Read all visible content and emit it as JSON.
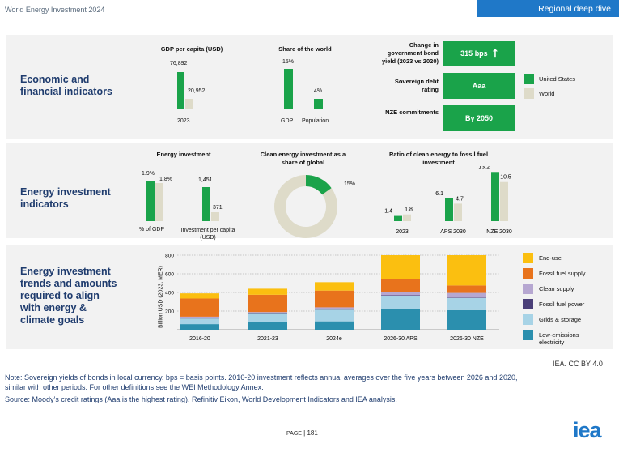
{
  "header": {
    "title": "World Energy Investment 2024",
    "section_button": "Regional deep dive"
  },
  "colors": {
    "us_green": "#1aa34a",
    "world_beige": "#dedbc9",
    "accent_blue": "#1f78c8",
    "title_navy": "#1f3c6e"
  },
  "panel1": {
    "title": "Economic and\nfinancial indicators",
    "gdp_chart": {
      "caption": "GDP per capita (USD)",
      "us_label": "76,892",
      "world_label": "20,952",
      "year_label": "2023"
    },
    "share_chart": {
      "caption": "Share of the world",
      "gdp_label": "15%",
      "pop_label": "4%",
      "cat_gdp": "GDP",
      "cat_pop": "Population"
    },
    "bond": {
      "label": "Change in\ngovernment bond\nyield (2023 vs 2020)",
      "value": "315 bps",
      "icon": "arrow-up-icon"
    },
    "rating": {
      "label": "Sovereign debt\nrating",
      "value": "Aaa"
    },
    "nze": {
      "label": "NZE commitments",
      "value": "By 2050"
    },
    "legend": {
      "us": "United States",
      "world": "World"
    }
  },
  "panel2": {
    "title": "Energy investment\nindicators",
    "invest_chart": {
      "caption": "Energy investment",
      "pct_us": "1.9%",
      "pct_world": "1.8%",
      "pc_us": "1,451",
      "pc_world": "371",
      "cat_pct": "% of GDP",
      "cat_pc": "Investment per capita\n(USD)"
    },
    "donut": {
      "caption": "Clean energy investment as a\nshare of global",
      "value_label": "15%"
    },
    "ratio_chart": {
      "caption": "Ratio of clean energy to fossil fuel\ninvestment",
      "labels": [
        [
          "1.4",
          "1.8"
        ],
        [
          "6.1",
          "4.7"
        ],
        [
          "13.2",
          "10.5"
        ]
      ],
      "categories": [
        "2023",
        "APS 2030",
        "NZE 2030"
      ]
    }
  },
  "panel3": {
    "title": "Energy investment\ntrends and amounts\nrequired to align\nwith energy &\nclimate goals",
    "legend": [
      "End-use",
      "Fossil fuel supply",
      "Clean supply",
      "Fossil fuel power",
      "Grids & storage",
      "Low-emissions\nelectricity"
    ]
  },
  "chart_data": [
    {
      "type": "bar",
      "title": "GDP per capita (USD)",
      "categories": [
        "2023"
      ],
      "series": [
        {
          "name": "United States",
          "values": [
            76892
          ]
        },
        {
          "name": "World",
          "values": [
            20952
          ]
        }
      ]
    },
    {
      "type": "bar",
      "title": "Share of the world",
      "categories": [
        "GDP",
        "Population"
      ],
      "series": [
        {
          "name": "United States",
          "values": [
            15,
            4
          ]
        }
      ]
    },
    {
      "type": "bar",
      "title": "Energy investment",
      "categories": [
        "% of GDP",
        "Investment per capita (USD)"
      ],
      "series": [
        {
          "name": "United States",
          "values": [
            1.9,
            1451
          ]
        },
        {
          "name": "World",
          "values": [
            1.8,
            371
          ]
        }
      ]
    },
    {
      "type": "pie",
      "title": "Clean energy investment as a share of global",
      "values": [
        15,
        85
      ],
      "labels": [
        "15%",
        ""
      ]
    },
    {
      "type": "bar",
      "title": "Ratio of clean energy to fossil fuel investment",
      "categories": [
        "2023",
        "APS 2030",
        "NZE 2030"
      ],
      "series": [
        {
          "name": "United States",
          "values": [
            1.4,
            6.1,
            13.2
          ]
        },
        {
          "name": "World",
          "values": [
            1.8,
            4.7,
            10.5
          ]
        }
      ]
    },
    {
      "type": "bar",
      "stacked": true,
      "ylabel": "Billion USD (2023, MER)",
      "ylim": [
        0,
        800
      ],
      "yticks": [
        200,
        400,
        600,
        800
      ],
      "categories": [
        "2016-20",
        "2021-23",
        "2024e",
        "2026-30 APS",
        "2026-30 NZE"
      ],
      "series": [
        {
          "name": "Low-emissions electricity",
          "color": "#2b8fae",
          "values": [
            60,
            80,
            90,
            225,
            210
          ]
        },
        {
          "name": "Grids & storage",
          "color": "#a7d3e6",
          "values": [
            60,
            90,
            125,
            140,
            130
          ]
        },
        {
          "name": "Fossil fuel power",
          "color": "#4a3f78",
          "values": [
            10,
            10,
            10,
            5,
            5
          ]
        },
        {
          "name": "Clean supply",
          "color": "#b6a7d1",
          "values": [
            10,
            10,
            15,
            30,
            50
          ]
        },
        {
          "name": "Fossil fuel supply",
          "color": "#e8731c",
          "values": [
            195,
            185,
            180,
            140,
            80
          ]
        },
        {
          "name": "End-use",
          "color": "#fbbf10",
          "values": [
            55,
            65,
            90,
            260,
            325
          ]
        }
      ]
    }
  ],
  "footer": {
    "credit": "IEA. CC BY 4.0",
    "note1": "Note: Sovereign yields of bonds in local currency. bps = basis points. 2016-20 investment reflects annual averages over the five years between 2026 and 2020,",
    "note2": "similar with other periods. For other definitions see the WEI Methodology Annex.",
    "source": "Source: Moody’s credit ratings (Aaa is the highest rating), Refinitiv Eikon, World Development Indicators and IEA analysis.",
    "page_prefix": "Page",
    "page_number": "181",
    "logo_text": "iea"
  }
}
